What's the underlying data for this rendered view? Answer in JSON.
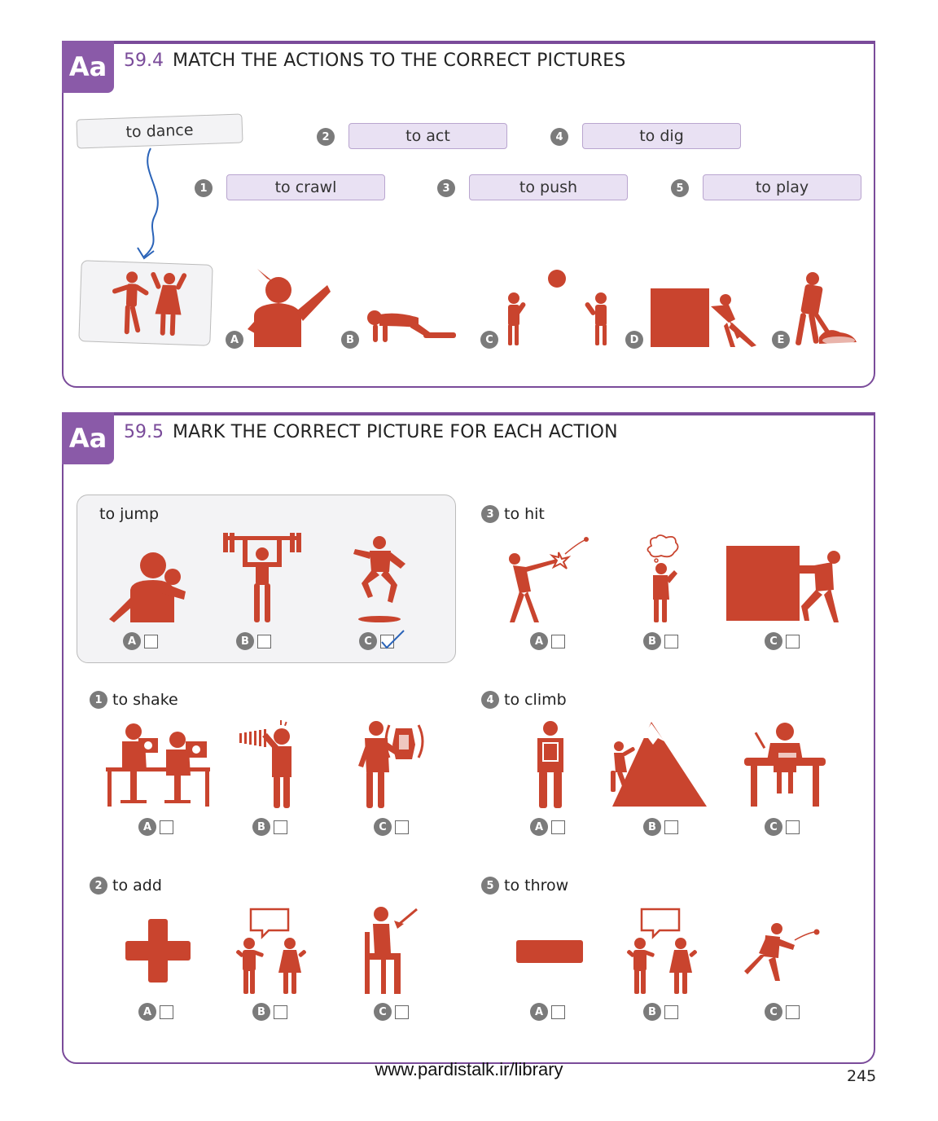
{
  "sections": [
    {
      "badge": "Aa",
      "number": "59.4",
      "title": "MATCH THE ACTIONS TO THE CORRECT PICTURES"
    },
    {
      "badge": "Aa",
      "number": "59.5",
      "title": "MARK THE CORRECT PICTURE FOR EACH ACTION"
    }
  ],
  "match": {
    "example_label": "to dance",
    "items": [
      {
        "num": "1",
        "label": "to crawl"
      },
      {
        "num": "2",
        "label": "to act"
      },
      {
        "num": "3",
        "label": "to push"
      },
      {
        "num": "4",
        "label": "to dig"
      },
      {
        "num": "5",
        "label": "to play"
      }
    ],
    "pictures": [
      "A",
      "B",
      "C",
      "D",
      "E"
    ]
  },
  "mark": {
    "example": {
      "label": "to jump",
      "options": [
        "A",
        "B",
        "C"
      ],
      "checked": "C"
    },
    "questions": [
      {
        "num": "1",
        "label": "to shake"
      },
      {
        "num": "2",
        "label": "to add"
      },
      {
        "num": "3",
        "label": "to hit"
      },
      {
        "num": "4",
        "label": "to climb"
      },
      {
        "num": "5",
        "label": "to throw"
      }
    ],
    "option_letters": [
      "A",
      "B",
      "C"
    ]
  },
  "footer": {
    "url": "www.pardistalk.ir/library",
    "page": "245"
  },
  "colors": {
    "accent": "#7a4b9a",
    "figure": "#c9442e",
    "label_bg": "#e9e1f3",
    "check": "#2a63b8"
  }
}
